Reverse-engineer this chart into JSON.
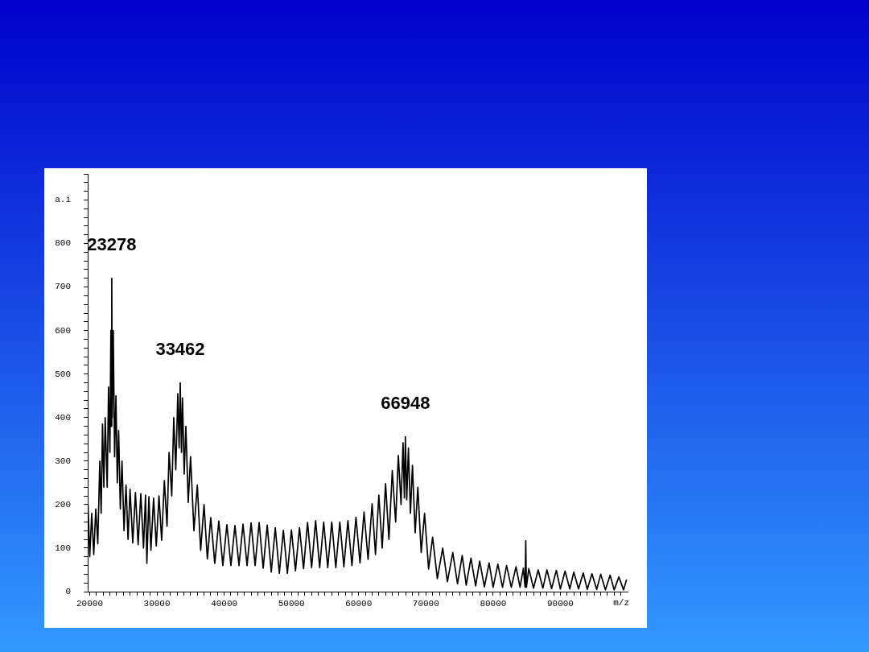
{
  "chart_data": {
    "type": "line",
    "xlabel": "m/z",
    "ylabel": "a.i",
    "marker": "none",
    "series": [
      {
        "color": "#000000",
        "x": [
          19750,
          20000,
          20300,
          20600,
          20900,
          21200,
          21500,
          21700,
          21900,
          22100,
          22300,
          22600,
          22800,
          23000,
          23150,
          23200,
          23278,
          23350,
          23500,
          23700,
          23900,
          24100,
          24300,
          24550,
          24800,
          25100,
          25400,
          25700,
          26000,
          26400,
          26800,
          27200,
          27600,
          28000,
          28300,
          28500,
          28800,
          29100,
          29500,
          29900,
          30300,
          30700,
          31100,
          31500,
          31800,
          32200,
          32500,
          32800,
          33100,
          33300,
          33462,
          33650,
          33800,
          34050,
          34300,
          34650,
          35000,
          35500,
          36000,
          36500,
          37000,
          37500,
          38000,
          38600,
          39200,
          39800,
          40400,
          41000,
          41600,
          42200,
          42800,
          43400,
          44000,
          44600,
          45200,
          45800,
          46400,
          47000,
          47600,
          48200,
          48800,
          49400,
          50000,
          50600,
          51200,
          51800,
          52400,
          53000,
          53600,
          54200,
          54800,
          55400,
          56000,
          56600,
          57200,
          57800,
          58400,
          59000,
          59600,
          60200,
          60800,
          61400,
          62000,
          62500,
          63000,
          63500,
          64000,
          64500,
          65000,
          65500,
          65900,
          66300,
          66600,
          66800,
          66948,
          67150,
          67400,
          67700,
          68000,
          68400,
          68800,
          69300,
          69800,
          70400,
          71000,
          71700,
          72500,
          73200,
          74000,
          74700,
          75400,
          76000,
          76700,
          77400,
          78000,
          78700,
          79400,
          80000,
          80700,
          81400,
          82000,
          82700,
          83400,
          84000,
          84500,
          84750,
          84850,
          84950,
          85300,
          86000,
          86700,
          87400,
          88000,
          88700,
          89400,
          90000,
          90700,
          91400,
          92000,
          92700,
          93400,
          94000,
          94700,
          95400,
          96000,
          96700,
          97400,
          98000,
          98700,
          99400,
          99850
        ],
        "values": [
          200,
          80,
          180,
          85,
          190,
          110,
          300,
          180,
          385,
          240,
          400,
          240,
          470,
          320,
          600,
          380,
          720,
          400,
          600,
          310,
          450,
          250,
          370,
          190,
          300,
          140,
          245,
          120,
          235,
          112,
          228,
          108,
          225,
          100,
          222,
          65,
          218,
          95,
          215,
          105,
          220,
          118,
          255,
          150,
          320,
          220,
          400,
          280,
          455,
          330,
          480,
          320,
          445,
          270,
          380,
          205,
          310,
          140,
          245,
          95,
          200,
          75,
          170,
          65,
          162,
          60,
          154,
          60,
          152,
          60,
          155,
          60,
          158,
          60,
          159,
          54,
          153,
          45,
          147,
          42,
          141,
          42,
          142,
          48,
          147,
          53,
          159,
          55,
          163,
          55,
          160,
          55,
          160,
          55,
          160,
          57,
          163,
          60,
          171,
          66,
          183,
          74,
          202,
          85,
          222,
          100,
          248,
          120,
          278,
          160,
          313,
          200,
          342,
          215,
          356,
          211,
          330,
          180,
          290,
          135,
          240,
          90,
          180,
          52,
          125,
          30,
          100,
          23,
          90,
          18,
          83,
          15,
          77,
          13,
          70,
          11,
          66,
          10,
          63,
          10,
          60,
          10,
          57,
          10,
          54,
          10,
          117,
          10,
          53,
          8,
          50,
          8,
          50,
          7,
          49,
          6,
          47,
          6,
          45,
          6,
          43,
          5,
          41,
          5,
          40,
          4,
          38,
          4,
          34,
          4,
          28
        ]
      }
    ],
    "xlim": [
      19700,
      100000
    ],
    "ylim": [
      0,
      960
    ],
    "xticks": [
      20000,
      {
        "value": 21000,
        "label": null
      },
      {
        "value": 22000,
        "label": null
      },
      {
        "value": 23000,
        "label": null
      },
      {
        "value": 24000,
        "label": null
      },
      {
        "value": 25000,
        "label": null
      },
      {
        "value": 26000,
        "label": null
      },
      {
        "value": 27000,
        "label": null
      },
      {
        "value": 28000,
        "label": null
      },
      {
        "value": 29000,
        "label": null
      },
      30000,
      {
        "value": 31000,
        "label": null
      },
      {
        "value": 32000,
        "label": null
      },
      {
        "value": 33000,
        "label": null
      },
      {
        "value": 34000,
        "label": null
      },
      {
        "value": 35000,
        "label": null
      },
      {
        "value": 36000,
        "label": null
      },
      {
        "value": 37000,
        "label": null
      },
      {
        "value": 38000,
        "label": null
      },
      {
        "value": 39000,
        "label": null
      },
      40000,
      {
        "value": 41000,
        "label": null
      },
      {
        "value": 42000,
        "label": null
      },
      {
        "value": 43000,
        "label": null
      },
      {
        "value": 44000,
        "label": null
      },
      {
        "value": 45000,
        "label": null
      },
      {
        "value": 46000,
        "label": null
      },
      {
        "value": 47000,
        "label": null
      },
      {
        "value": 48000,
        "label": null
      },
      {
        "value": 49000,
        "label": null
      },
      50000,
      {
        "value": 51000,
        "label": null
      },
      {
        "value": 52000,
        "label": null
      },
      {
        "value": 53000,
        "label": null
      },
      {
        "value": 54000,
        "label": null
      },
      {
        "value": 55000,
        "label": null
      },
      {
        "value": 56000,
        "label": null
      },
      {
        "value": 57000,
        "label": null
      },
      {
        "value": 58000,
        "label": null
      },
      {
        "value": 59000,
        "label": null
      },
      60000,
      {
        "value": 61000,
        "label": null
      },
      {
        "value": 62000,
        "label": null
      },
      {
        "value": 63000,
        "label": null
      },
      {
        "value": 64000,
        "label": null
      },
      {
        "value": 65000,
        "label": null
      },
      {
        "value": 66000,
        "label": null
      },
      {
        "value": 67000,
        "label": null
      },
      {
        "value": 68000,
        "label": null
      },
      {
        "value": 69000,
        "label": null
      },
      70000,
      {
        "value": 71000,
        "label": null
      },
      {
        "value": 72000,
        "label": null
      },
      {
        "value": 73000,
        "label": null
      },
      {
        "value": 74000,
        "label": null
      },
      {
        "value": 75000,
        "label": null
      },
      {
        "value": 76000,
        "label": null
      },
      {
        "value": 77000,
        "label": null
      },
      {
        "value": 78000,
        "label": null
      },
      {
        "value": 79000,
        "label": null
      },
      80000,
      {
        "value": 81000,
        "label": null
      },
      {
        "value": 82000,
        "label": null
      },
      {
        "value": 83000,
        "label": null
      },
      {
        "value": 84000,
        "label": null
      },
      {
        "value": 85000,
        "label": null
      },
      {
        "value": 86000,
        "label": null
      },
      {
        "value": 87000,
        "label": null
      },
      {
        "value": 88000,
        "label": null
      },
      {
        "value": 89000,
        "label": null
      },
      90000,
      {
        "value": 91000,
        "label": null
      },
      {
        "value": 92000,
        "label": null
      },
      {
        "value": 93000,
        "label": null
      },
      {
        "value": 94000,
        "label": null
      },
      {
        "value": 95000,
        "label": null
      },
      {
        "value": 96000,
        "label": null
      },
      {
        "value": 97000,
        "label": null
      },
      {
        "value": 98000,
        "label": null
      },
      {
        "value": 99000,
        "label": null
      }
    ],
    "yticks": [
      0,
      {
        "value": 20,
        "label": null
      },
      {
        "value": 40,
        "label": null
      },
      {
        "value": 60,
        "label": null
      },
      {
        "value": 80,
        "label": null
      },
      100,
      {
        "value": 120,
        "label": null
      },
      {
        "value": 140,
        "label": null
      },
      {
        "value": 160,
        "label": null
      },
      {
        "value": 180,
        "label": null
      },
      200,
      {
        "value": 220,
        "label": null
      },
      {
        "value": 240,
        "label": null
      },
      {
        "value": 260,
        "label": null
      },
      {
        "value": 280,
        "label": null
      },
      300,
      {
        "value": 320,
        "label": null
      },
      {
        "value": 340,
        "label": null
      },
      {
        "value": 360,
        "label": null
      },
      {
        "value": 380,
        "label": null
      },
      400,
      {
        "value": 420,
        "label": null
      },
      {
        "value": 440,
        "label": null
      },
      {
        "value": 460,
        "label": null
      },
      {
        "value": 480,
        "label": null
      },
      500,
      {
        "value": 520,
        "label": null
      },
      {
        "value": 540,
        "label": null
      },
      {
        "value": 560,
        "label": null
      },
      {
        "value": 580,
        "label": null
      },
      600,
      {
        "value": 620,
        "label": null
      },
      {
        "value": 640,
        "label": null
      },
      {
        "value": 660,
        "label": null
      },
      {
        "value": 680,
        "label": null
      },
      700,
      {
        "value": 720,
        "label": null
      },
      {
        "value": 740,
        "label": null
      },
      {
        "value": 760,
        "label": null
      },
      {
        "value": 780,
        "label": null
      },
      800,
      {
        "value": 820,
        "label": null
      },
      {
        "value": 840,
        "label": null
      },
      {
        "value": 860,
        "label": null
      },
      {
        "value": 880,
        "label": null
      },
      {
        "value": 900,
        "label": null
      },
      {
        "value": 920,
        "label": null
      },
      {
        "value": 940,
        "label": null
      },
      {
        "value": 960,
        "label": null
      }
    ],
    "annotations": [
      {
        "text": "23278",
        "x": 23278,
        "y": 720
      },
      {
        "text": "33462",
        "x": 33462,
        "y": 480
      },
      {
        "text": "66948",
        "x": 66948,
        "y": 356
      }
    ]
  }
}
